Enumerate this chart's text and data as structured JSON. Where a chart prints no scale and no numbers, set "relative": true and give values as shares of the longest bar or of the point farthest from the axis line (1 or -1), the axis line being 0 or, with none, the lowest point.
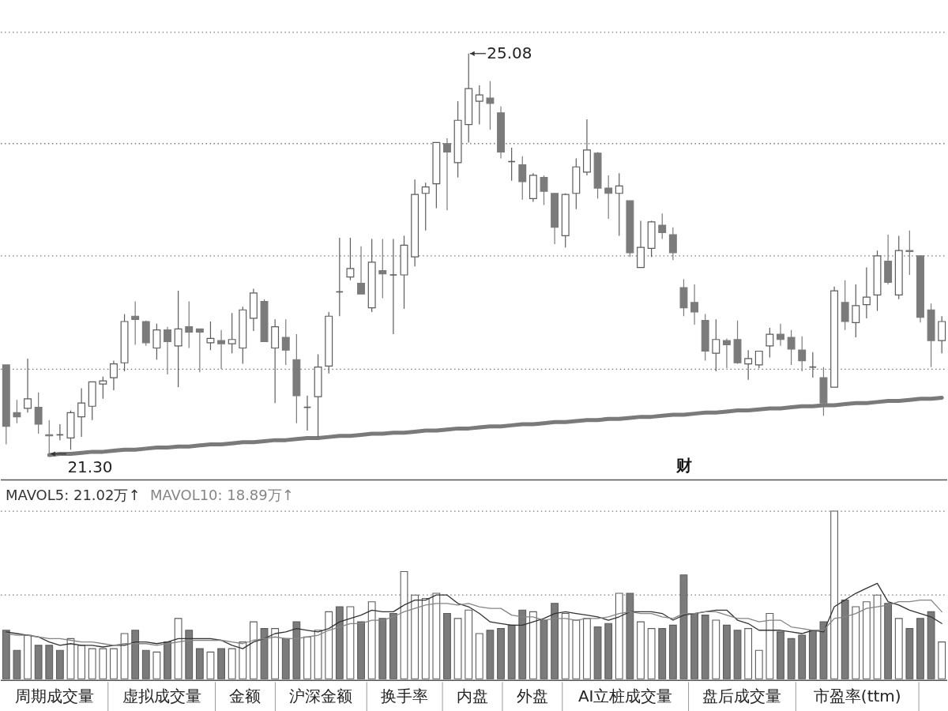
{
  "chart_data": [
    {
      "type": "candlestick",
      "categories": [
        null,
        null,
        null,
        null,
        null,
        null,
        null,
        null,
        null,
        null,
        null,
        null,
        null,
        null,
        null,
        null,
        null,
        null,
        null,
        null,
        null,
        null,
        null,
        null,
        null,
        null,
        null,
        null,
        null,
        null,
        null,
        null,
        null,
        null,
        null,
        null,
        null,
        null,
        null,
        null,
        null,
        null,
        null,
        null,
        null,
        null,
        null,
        null,
        null,
        null,
        null,
        null,
        null,
        null,
        null,
        null,
        null,
        null,
        null,
        null,
        null,
        null,
        null,
        null,
        null,
        null,
        null,
        null,
        null,
        null,
        null,
        null,
        null,
        null,
        null,
        null,
        null,
        null,
        null,
        null,
        null,
        null,
        null,
        null,
        null,
        null,
        null,
        null
      ],
      "ohlc": [
        [
          22.14,
          22.14,
          21.39,
          21.56
        ],
        [
          21.69,
          21.81,
          21.59,
          21.65
        ],
        [
          21.73,
          22.2,
          21.69,
          21.82
        ],
        [
          21.74,
          21.88,
          21.49,
          21.58
        ],
        [
          21.48,
          21.62,
          21.3,
          21.47
        ],
        [
          21.48,
          21.58,
          21.43,
          21.48
        ],
        [
          21.45,
          21.71,
          21.34,
          21.69
        ],
        [
          21.65,
          21.92,
          21.46,
          21.78
        ],
        [
          21.75,
          21.98,
          21.62,
          21.98
        ],
        [
          21.96,
          22.03,
          21.82,
          21.99
        ],
        [
          22.02,
          22.18,
          21.9,
          22.15
        ],
        [
          22.16,
          22.62,
          22.08,
          22.55
        ],
        [
          22.6,
          22.74,
          22.33,
          22.57
        ],
        [
          22.55,
          22.56,
          22.32,
          22.35
        ],
        [
          22.3,
          22.53,
          22.19,
          22.47
        ],
        [
          22.47,
          22.5,
          22.05,
          22.36
        ],
        [
          22.32,
          22.84,
          21.93,
          22.48
        ],
        [
          22.5,
          22.74,
          22.3,
          22.45
        ],
        [
          22.48,
          22.48,
          22.07,
          22.45
        ],
        [
          22.35,
          22.55,
          22.28,
          22.39
        ],
        [
          22.37,
          22.47,
          22.1,
          22.34
        ],
        [
          22.34,
          22.63,
          22.25,
          22.38
        ],
        [
          22.3,
          22.69,
          22.15,
          22.66
        ],
        [
          22.58,
          22.86,
          22.46,
          22.82
        ],
        [
          22.74,
          22.76,
          22.36,
          22.36
        ],
        [
          22.3,
          22.57,
          21.78,
          22.5
        ],
        [
          22.4,
          22.57,
          22.14,
          22.28
        ],
        [
          22.19,
          22.43,
          21.59,
          21.85
        ],
        [
          21.74,
          21.85,
          21.52,
          21.74
        ],
        [
          21.84,
          22.24,
          21.46,
          22.12
        ],
        [
          22.13,
          22.64,
          22.06,
          22.6
        ],
        [
          22.83,
          23.34,
          22.6,
          22.83
        ],
        [
          22.97,
          23.34,
          22.94,
          23.05
        ],
        [
          22.91,
          23.26,
          22.81,
          22.81
        ],
        [
          22.68,
          23.33,
          22.64,
          23.11
        ],
        [
          23.03,
          23.33,
          22.77,
          23.0
        ],
        [
          22.99,
          23.33,
          22.43,
          22.99
        ],
        [
          22.99,
          23.36,
          22.67,
          23.27
        ],
        [
          23.16,
          23.89,
          23.07,
          23.75
        ],
        [
          23.76,
          23.86,
          23.41,
          23.82
        ],
        [
          23.85,
          24.24,
          23.62,
          24.24
        ],
        [
          24.23,
          24.28,
          23.6,
          24.15
        ],
        [
          24.05,
          24.63,
          23.91,
          24.45
        ],
        [
          24.41,
          25.08,
          24.24,
          24.75
        ],
        [
          24.63,
          24.78,
          24.41,
          24.69
        ],
        [
          24.66,
          24.82,
          24.36,
          24.61
        ],
        [
          24.52,
          24.58,
          24.09,
          24.15
        ],
        [
          24.06,
          24.19,
          23.88,
          24.06
        ],
        [
          24.03,
          24.11,
          23.7,
          23.87
        ],
        [
          23.71,
          23.95,
          23.68,
          23.93
        ],
        [
          23.91,
          23.93,
          23.65,
          23.78
        ],
        [
          23.76,
          23.76,
          23.28,
          23.44
        ],
        [
          23.36,
          23.76,
          23.25,
          23.75
        ],
        [
          23.76,
          24.09,
          23.61,
          24.01
        ],
        [
          23.96,
          24.46,
          23.93,
          24.17
        ],
        [
          24.14,
          24.15,
          23.71,
          23.81
        ],
        [
          23.81,
          23.93,
          23.52,
          23.76
        ],
        [
          23.76,
          23.95,
          23.36,
          23.83
        ],
        [
          23.69,
          23.69,
          23.16,
          23.2
        ],
        [
          23.06,
          23.5,
          23.06,
          23.25
        ],
        [
          23.24,
          23.5,
          23.16,
          23.49
        ],
        [
          23.46,
          23.57,
          23.33,
          23.39
        ],
        [
          23.37,
          23.44,
          23.13,
          23.2
        ],
        [
          22.87,
          22.95,
          22.6,
          22.68
        ],
        [
          22.73,
          22.9,
          22.52,
          22.64
        ],
        [
          22.56,
          22.62,
          22.18,
          22.27
        ],
        [
          22.25,
          22.57,
          22.08,
          22.38
        ],
        [
          22.37,
          22.39,
          22.11,
          22.33
        ],
        [
          22.38,
          22.56,
          22.15,
          22.16
        ],
        [
          22.15,
          22.28,
          22.0,
          22.2
        ],
        [
          22.14,
          22.27,
          22.11,
          22.27
        ],
        [
          22.32,
          22.49,
          22.21,
          22.43
        ],
        [
          22.43,
          22.53,
          22.32,
          22.38
        ],
        [
          22.4,
          22.47,
          22.14,
          22.29
        ],
        [
          22.28,
          22.41,
          22.08,
          22.18
        ],
        [
          22.12,
          22.26,
          22.02,
          22.12
        ],
        [
          22.02,
          22.12,
          21.66,
          21.78
        ],
        [
          21.93,
          22.88,
          21.93,
          22.84
        ],
        [
          22.73,
          22.94,
          22.47,
          22.55
        ],
        [
          22.54,
          22.9,
          22.4,
          22.7
        ],
        [
          22.71,
          23.06,
          22.58,
          22.78
        ],
        [
          22.8,
          23.22,
          22.65,
          23.17
        ],
        [
          23.12,
          23.37,
          22.9,
          22.92
        ],
        [
          22.8,
          23.36,
          22.76,
          23.22
        ],
        [
          23.22,
          23.41,
          22.99,
          23.21
        ],
        [
          23.17,
          23.17,
          22.54,
          22.59
        ],
        [
          22.66,
          22.72,
          22.12,
          22.37
        ],
        [
          22.37,
          22.6,
          22.25,
          22.55
        ]
      ],
      "series": [
        {
          "type": "line",
          "color": "#7a7a7a",
          "values": [
            null,
            null,
            null,
            null,
            21.29,
            21.3,
            21.3,
            21.31,
            21.32,
            21.32,
            21.33,
            21.34,
            21.34,
            21.35,
            21.36,
            21.36,
            21.37,
            21.37,
            21.38,
            21.39,
            21.39,
            21.4,
            21.41,
            21.41,
            21.42,
            21.43,
            21.43,
            21.44,
            21.45,
            21.45,
            21.46,
            21.47,
            21.47,
            21.48,
            21.49,
            21.49,
            21.5,
            21.5,
            21.51,
            21.52,
            21.52,
            21.53,
            21.54,
            21.54,
            21.55,
            21.56,
            21.56,
            21.57,
            21.58,
            21.58,
            21.59,
            21.6,
            21.6,
            21.61,
            21.62,
            21.62,
            21.63,
            21.63,
            21.64,
            21.65,
            21.65,
            21.66,
            21.67,
            21.67,
            21.68,
            21.69,
            21.69,
            21.7,
            21.71,
            21.71,
            21.72,
            21.73,
            21.73,
            21.74,
            21.75,
            21.75,
            21.76,
            21.76,
            21.77,
            21.78,
            21.78,
            21.79,
            21.8,
            21.8,
            21.81,
            21.82,
            21.82,
            21.83
          ]
        }
      ],
      "ylim": [
        21.06,
        25.58
      ],
      "ref_lines": [
        {
          "axis": "y",
          "value": 22.1,
          "label": null,
          "line_style": "dotted",
          "color": "#7a7a7a"
        },
        {
          "axis": "y",
          "value": 23.17,
          "label": null,
          "line_style": "dotted",
          "color": "#7a7a7a"
        },
        {
          "axis": "y",
          "value": 24.23,
          "label": null,
          "line_style": "dotted",
          "color": "#7a7a7a"
        },
        {
          "axis": "y",
          "value": 25.28,
          "label": null,
          "line_style": "dotted",
          "color": "#7a7a7a"
        }
      ],
      "annotations": [
        "25.08",
        "21.30",
        "财"
      ]
    },
    {
      "type": "bar",
      "relative": true,
      "categories": [
        null,
        null,
        null,
        null,
        null,
        null,
        null,
        null,
        null,
        null,
        null,
        null,
        null,
        null,
        null,
        null,
        null,
        null,
        null,
        null,
        null,
        null,
        null,
        null,
        null,
        null,
        null,
        null,
        null,
        null,
        null,
        null,
        null,
        null,
        null,
        null,
        null,
        null,
        null,
        null,
        null,
        null,
        null,
        null,
        null,
        null,
        null,
        null,
        null,
        null,
        null,
        null,
        null,
        null,
        null,
        null,
        null,
        null,
        null,
        null,
        null,
        null,
        null,
        null,
        null,
        null,
        null,
        null,
        null,
        null,
        null,
        null,
        null,
        null,
        null,
        null,
        null,
        null,
        null,
        null,
        null,
        null,
        null,
        null,
        null,
        null,
        null,
        null
      ],
      "series": [
        {
          "type": "bar",
          "values": [
            0.29,
            0.17,
            0.26,
            0.2,
            0.2,
            0.17,
            0.24,
            0.2,
            0.18,
            0.18,
            0.18,
            0.27,
            0.29,
            0.17,
            0.16,
            0.22,
            0.36,
            0.29,
            0.18,
            0.16,
            0.18,
            0.18,
            0.22,
            0.34,
            0.3,
            0.3,
            0.24,
            0.34,
            0.25,
            0.29,
            0.4,
            0.43,
            0.43,
            0.34,
            0.46,
            0.36,
            0.39,
            0.64,
            0.5,
            0.48,
            0.51,
            0.39,
            0.36,
            0.41,
            0.27,
            0.29,
            0.3,
            0.32,
            0.41,
            0.4,
            0.35,
            0.45,
            0.39,
            0.35,
            0.36,
            0.31,
            0.33,
            0.51,
            0.51,
            0.34,
            0.3,
            0.3,
            0.32,
            0.62,
            0.39,
            0.38,
            0.35,
            0.32,
            0.29,
            0.3,
            0.17,
            0.39,
            0.28,
            0.24,
            0.26,
            0.29,
            0.34,
            1,
            0.47,
            0.43,
            0.46,
            0.5,
            0.45,
            0.36,
            0.3,
            0.36,
            0.4,
            0.22
          ],
          "colors": [
            "#7b7b7b",
            "#7b7b7b",
            "#ffffff",
            "#7b7b7b",
            "#7b7b7b",
            "#7b7b7b",
            "#ffffff",
            "#ffffff",
            "#ffffff",
            "#ffffff",
            "#ffffff",
            "#ffffff",
            "#7b7b7b",
            "#7b7b7b",
            "#ffffff",
            "#7b7b7b",
            "#ffffff",
            "#7b7b7b",
            "#7b7b7b",
            "#ffffff",
            "#7b7b7b",
            "#ffffff",
            "#ffffff",
            "#ffffff",
            "#7b7b7b",
            "#ffffff",
            "#7b7b7b",
            "#7b7b7b",
            "#ffffff",
            "#ffffff",
            "#ffffff",
            "#7b7b7b",
            "#ffffff",
            "#7b7b7b",
            "#ffffff",
            "#7b7b7b",
            "#7b7b7b",
            "#ffffff",
            "#ffffff",
            "#ffffff",
            "#ffffff",
            "#7b7b7b",
            "#ffffff",
            "#ffffff",
            "#ffffff",
            "#7b7b7b",
            "#7b7b7b",
            "#7b7b7b",
            "#7b7b7b",
            "#ffffff",
            "#7b7b7b",
            "#7b7b7b",
            "#ffffff",
            "#ffffff",
            "#ffffff",
            "#7b7b7b",
            "#7b7b7b",
            "#ffffff",
            "#7b7b7b",
            "#ffffff",
            "#ffffff",
            "#7b7b7b",
            "#7b7b7b",
            "#7b7b7b",
            "#7b7b7b",
            "#7b7b7b",
            "#ffffff",
            "#7b7b7b",
            "#7b7b7b",
            "#ffffff",
            "#ffffff",
            "#ffffff",
            "#7b7b7b",
            "#7b7b7b",
            "#7b7b7b",
            "#7b7b7b",
            "#7b7b7b",
            "#ffffff",
            "#7b7b7b",
            "#ffffff",
            "#ffffff",
            "#ffffff",
            "#7b7b7b",
            "#ffffff",
            "#7b7b7b",
            "#7b7b7b",
            "#7b7b7b",
            "#ffffff"
          ]
        },
        {
          "type": "line",
          "name": "MAVOL5: 21.02万↑",
          "color": "#333333",
          "values": [
            0.28,
            0.27,
            0.26,
            0.25,
            0.22,
            0.2,
            0.21,
            0.2,
            0.2,
            0.19,
            0.2,
            0.2,
            0.22,
            0.22,
            0.21,
            0.22,
            0.24,
            0.24,
            0.24,
            0.24,
            0.23,
            0.2,
            0.18,
            0.22,
            0.24,
            0.27,
            0.28,
            0.3,
            0.29,
            0.28,
            0.3,
            0.34,
            0.36,
            0.38,
            0.41,
            0.4,
            0.4,
            0.44,
            0.47,
            0.47,
            0.5,
            0.5,
            0.45,
            0.43,
            0.39,
            0.34,
            0.33,
            0.32,
            0.32,
            0.34,
            0.36,
            0.39,
            0.4,
            0.39,
            0.38,
            0.37,
            0.35,
            0.37,
            0.4,
            0.4,
            0.4,
            0.39,
            0.35,
            0.38,
            0.39,
            0.4,
            0.41,
            0.41,
            0.35,
            0.33,
            0.29,
            0.29,
            0.29,
            0.28,
            0.27,
            0.29,
            0.28,
            0.43,
            0.47,
            0.51,
            0.54,
            0.57,
            0.46,
            0.44,
            0.41,
            0.39,
            0.37,
            0.33
          ]
        },
        {
          "type": "line",
          "name": "MAVOL10: 18.89万↑",
          "color": "#858585",
          "values": [
            0.27,
            0.26,
            0.26,
            0.25,
            0.24,
            0.24,
            0.23,
            0.22,
            0.22,
            0.21,
            0.2,
            0.21,
            0.21,
            0.21,
            0.2,
            0.21,
            0.22,
            0.23,
            0.23,
            0.23,
            0.23,
            0.22,
            0.21,
            0.23,
            0.24,
            0.25,
            0.24,
            0.24,
            0.25,
            0.26,
            0.29,
            0.31,
            0.33,
            0.33,
            0.35,
            0.35,
            0.37,
            0.4,
            0.42,
            0.44,
            0.45,
            0.45,
            0.44,
            0.45,
            0.43,
            0.42,
            0.42,
            0.38,
            0.37,
            0.37,
            0.35,
            0.36,
            0.36,
            0.35,
            0.36,
            0.36,
            0.37,
            0.39,
            0.4,
            0.39,
            0.39,
            0.37,
            0.36,
            0.39,
            0.39,
            0.4,
            0.4,
            0.38,
            0.36,
            0.36,
            0.34,
            0.35,
            0.35,
            0.31,
            0.3,
            0.29,
            0.29,
            0.36,
            0.37,
            0.39,
            0.42,
            0.43,
            0.44,
            0.46,
            0.46,
            0.47,
            0.47,
            0.4
          ]
        }
      ],
      "ref_lines": [
        {
          "axis": "y",
          "value": 0.5,
          "label": null,
          "line_style": "dotted",
          "color": "#7a7a7a"
        },
        {
          "axis": "y",
          "value": 1,
          "label": null,
          "line_style": "dotted",
          "color": "#7a7a7a"
        }
      ]
    },
    {
      "type": "other",
      "annotations": [
        "周期成交量",
        "虚拟成交量",
        "金额",
        "沪深金额",
        "换手率",
        "内盘",
        "外盘",
        "AI立桩成交量",
        "盘后成交量",
        "市盈率(ttm)"
      ]
    }
  ]
}
